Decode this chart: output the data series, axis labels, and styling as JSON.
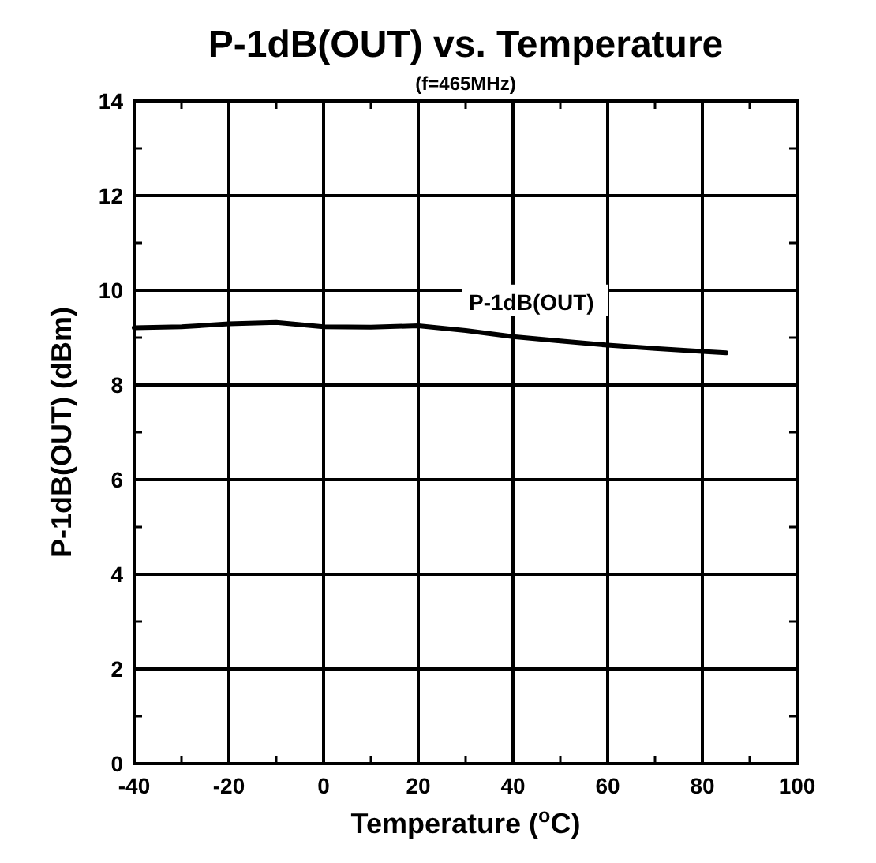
{
  "chart_data": {
    "type": "line",
    "title": "P-1dB(OUT) vs. Temperature",
    "subtitle": "(f=465MHz)",
    "xlabel": "Temperature ($^{o}$C)",
    "ylabel": "P-1dB(OUT) (dBm)",
    "x": [
      -40,
      -30,
      -20,
      -10,
      0,
      10,
      20,
      30,
      40,
      50,
      60,
      70,
      80,
      85
    ],
    "series": [
      {
        "name": "P-1dB(OUT)",
        "color": "#000000",
        "values": [
          9.21,
          9.23,
          9.29,
          9.32,
          9.23,
          9.22,
          9.25,
          9.15,
          9.02,
          8.93,
          8.84,
          8.77,
          8.71,
          8.68
        ]
      }
    ],
    "xlim": [
      -40,
      100
    ],
    "ylim": [
      0,
      14
    ],
    "xticks": [
      -40,
      {
        "value": -30,
        "label": null
      },
      -20,
      {
        "value": -10,
        "label": null
      },
      0,
      {
        "value": 10,
        "label": null
      },
      20,
      {
        "value": 30,
        "label": null
      },
      40,
      {
        "value": 50,
        "label": null
      },
      60,
      {
        "value": 70,
        "label": null
      },
      80,
      {
        "value": 90,
        "label": null
      },
      100
    ],
    "yticks": [
      0,
      {
        "value": 1,
        "label": null
      },
      2,
      {
        "value": 3,
        "label": null
      },
      4,
      {
        "value": 5,
        "label": null
      },
      6,
      {
        "value": 7,
        "label": null
      },
      8,
      {
        "value": 9,
        "label": null
      },
      10,
      {
        "value": 11,
        "label": null
      },
      12,
      {
        "value": 13,
        "label": null
      },
      14
    ],
    "grid": true,
    "marker": "none",
    "line_style": "solid"
  }
}
